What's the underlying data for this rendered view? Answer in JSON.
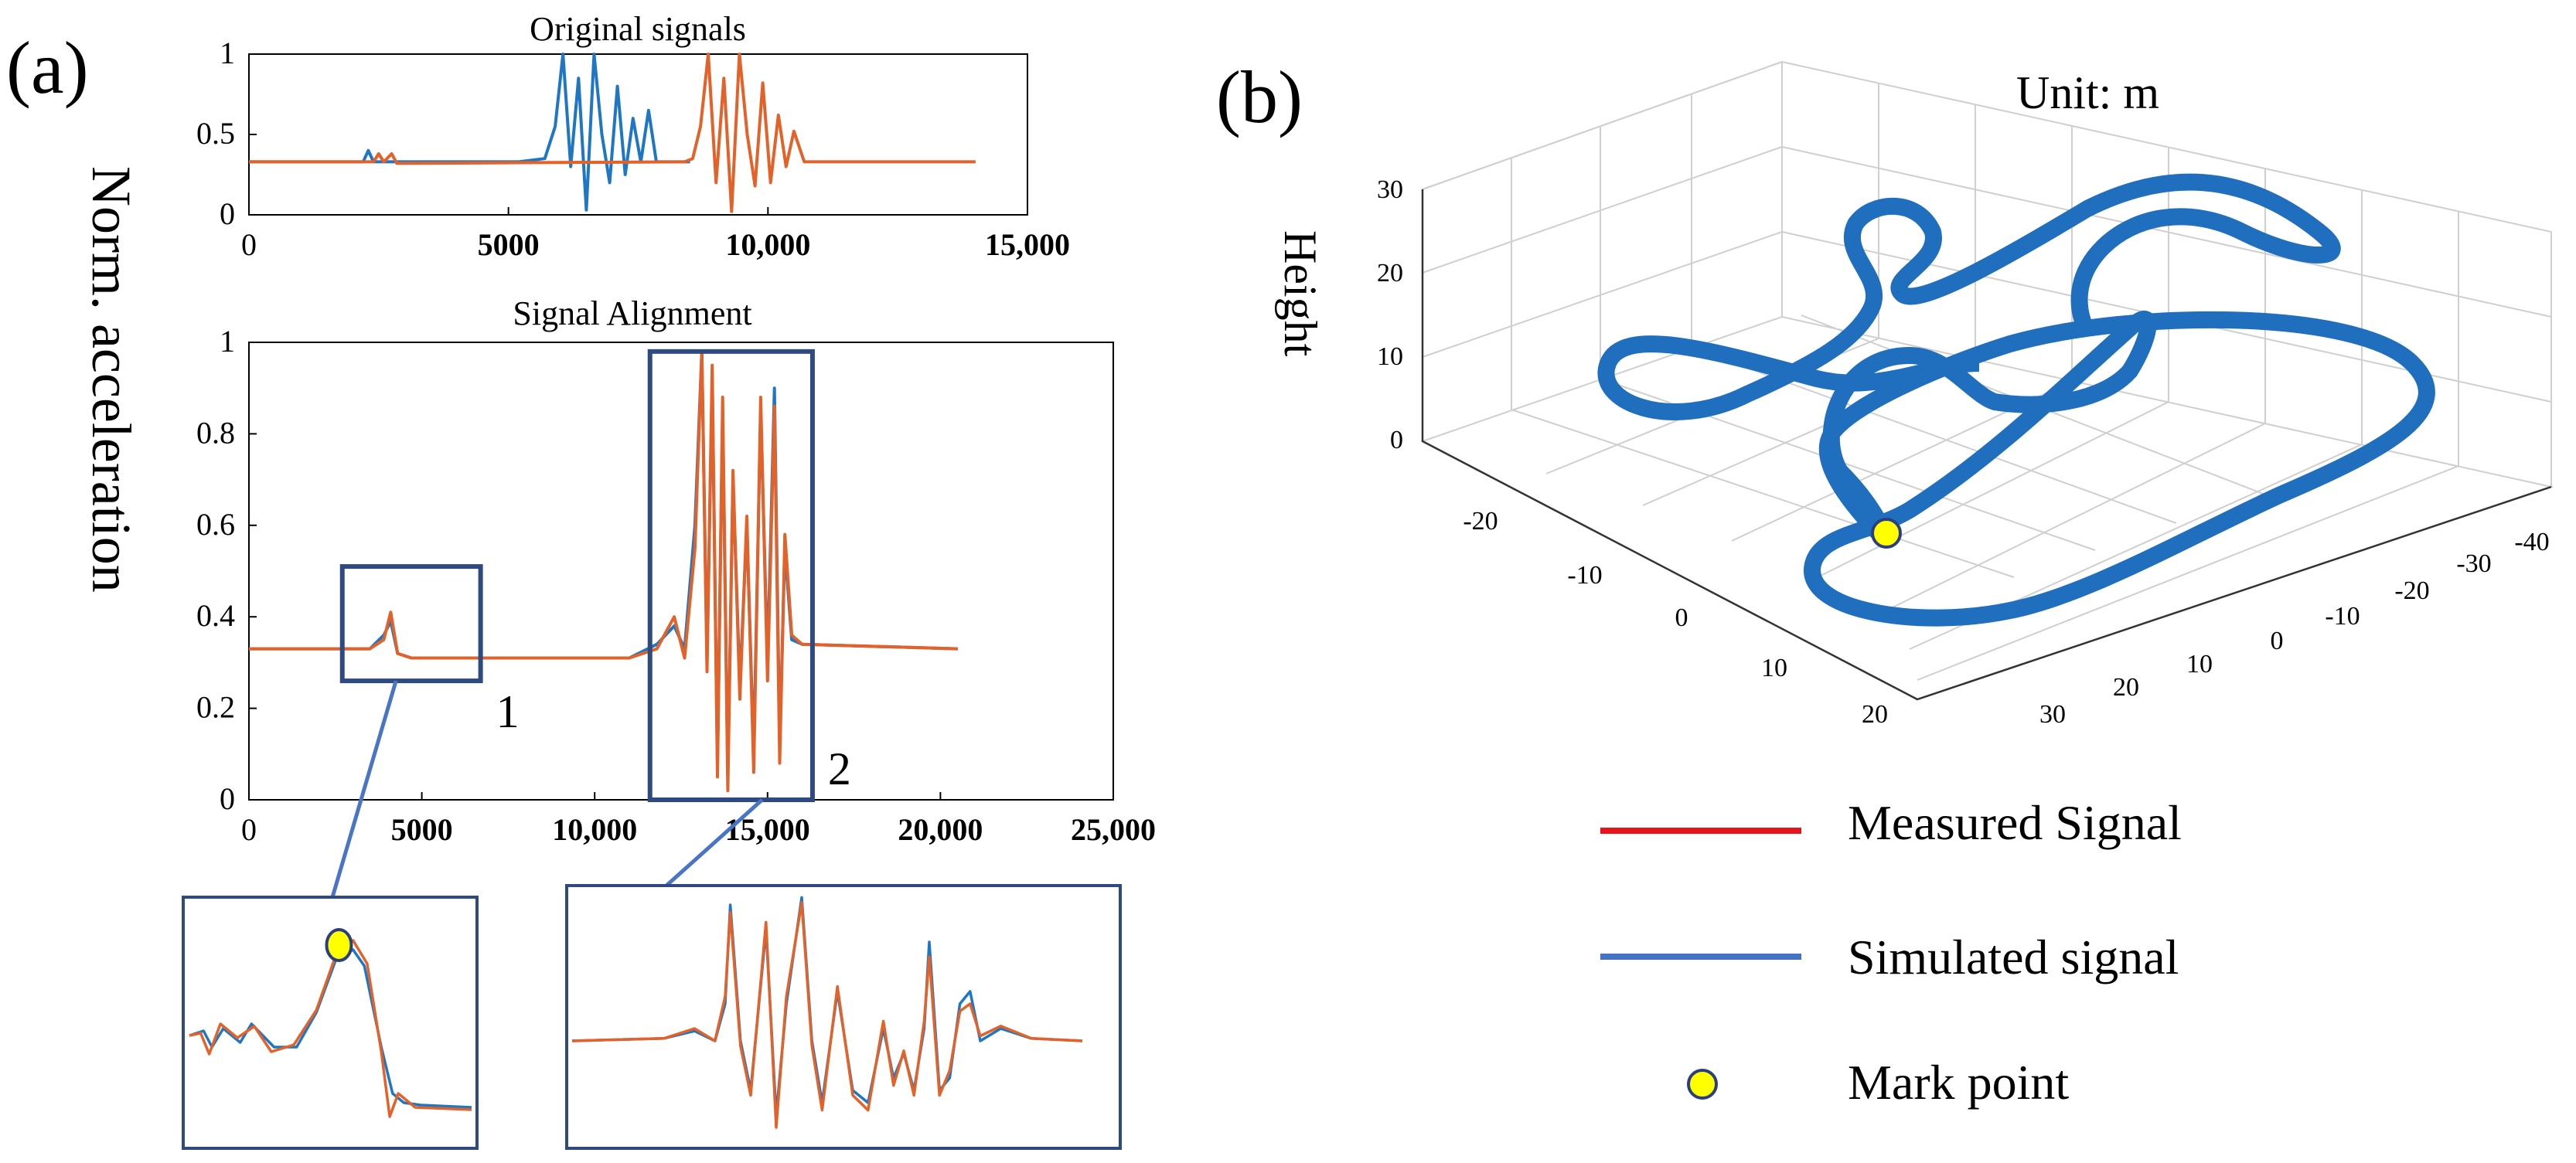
{
  "panel_a": {
    "label": "(a)",
    "ylabel": "Norm. acceleration"
  },
  "panel_b": {
    "label": "(b)",
    "unit_label": "Unit:  m",
    "z_label": "Height",
    "legend": [
      {
        "label": "Measured Signal",
        "color": "#e8141b",
        "kind": "line"
      },
      {
        "label": "Simulated signal",
        "color": "#4472c4",
        "kind": "line"
      },
      {
        "label": " Mark point",
        "color": "#ffff00",
        "kind": "marker"
      }
    ],
    "z_ticks": [
      "30",
      "20",
      "10",
      "0"
    ],
    "x_ticks": [
      "-20",
      "-10",
      "0",
      "10",
      "20"
    ],
    "y_ticks": [
      "-40",
      "-30",
      "-20",
      "-10",
      "0",
      "10",
      "20",
      "30"
    ]
  },
  "colors": {
    "simulated": "#1f77c4",
    "measured": "#e2622a",
    "box": "#2f4a7f",
    "zoom_line": "#4a75c4",
    "track": "#1f6fbe",
    "mark_fill": "#ffff00",
    "mark_stroke": "#2b3f80"
  },
  "chart_data": [
    {
      "type": "line",
      "title": "Original signals",
      "xlim": [
        0,
        15000
      ],
      "ylim": [
        0,
        1
      ],
      "x_ticks": [
        "0",
        "5000",
        "10,000",
        "15,000"
      ],
      "y_ticks": [
        "0",
        "0.5",
        "1"
      ],
      "series": [
        {
          "color": "#1f77c4",
          "points": [
            [
              0,
              0.33
            ],
            [
              2200,
              0.33
            ],
            [
              2300,
              0.4
            ],
            [
              2400,
              0.33
            ],
            [
              5200,
              0.33
            ],
            [
              5700,
              0.35
            ],
            [
              5900,
              0.55
            ],
            [
              6050,
              1.0
            ],
            [
              6200,
              0.3
            ],
            [
              6350,
              0.85
            ],
            [
              6500,
              0.03
            ],
            [
              6650,
              1.0
            ],
            [
              6800,
              0.5
            ],
            [
              6950,
              0.2
            ],
            [
              7100,
              0.8
            ],
            [
              7250,
              0.25
            ],
            [
              7400,
              0.6
            ],
            [
              7550,
              0.33
            ],
            [
              7700,
              0.65
            ],
            [
              7850,
              0.33
            ],
            [
              8500,
              0.33
            ]
          ]
        },
        {
          "color": "#e2622a",
          "points": [
            [
              0,
              0.33
            ],
            [
              2400,
              0.33
            ],
            [
              2500,
              0.38
            ],
            [
              2600,
              0.33
            ],
            [
              2750,
              0.38
            ],
            [
              2850,
              0.32
            ],
            [
              8400,
              0.33
            ],
            [
              8550,
              0.35
            ],
            [
              8700,
              0.55
            ],
            [
              8850,
              1.0
            ],
            [
              9000,
              0.2
            ],
            [
              9150,
              0.85
            ],
            [
              9300,
              0.02
            ],
            [
              9450,
              1.0
            ],
            [
              9600,
              0.5
            ],
            [
              9750,
              0.18
            ],
            [
              9900,
              0.82
            ],
            [
              10050,
              0.2
            ],
            [
              10200,
              0.62
            ],
            [
              10350,
              0.3
            ],
            [
              10500,
              0.52
            ],
            [
              10700,
              0.33
            ],
            [
              14000,
              0.33
            ]
          ]
        }
      ]
    },
    {
      "type": "line",
      "title": "Signal Alignment",
      "xlim": [
        0,
        25000
      ],
      "ylim": [
        0,
        1
      ],
      "x_ticks": [
        "0",
        "5000",
        "10,000",
        "15,000",
        "20,000",
        "25,000"
      ],
      "y_ticks": [
        "0",
        "0.2",
        "0.4",
        "0.6",
        "0.8",
        "1"
      ],
      "annotations": [
        {
          "label": "1",
          "x_range": [
            2700,
            6700
          ],
          "y_range": [
            0.26,
            0.51
          ]
        },
        {
          "label": "2",
          "x_range": [
            11600,
            16300
          ],
          "y_range": [
            0.0,
            0.98
          ]
        }
      ],
      "series": [
        {
          "color": "#1f77c4",
          "points": [
            [
              0,
              0.33
            ],
            [
              3500,
              0.33
            ],
            [
              3900,
              0.36
            ],
            [
              4100,
              0.39
            ],
            [
              4300,
              0.32
            ],
            [
              4700,
              0.31
            ],
            [
              11000,
              0.31
            ],
            [
              11800,
              0.34
            ],
            [
              12300,
              0.38
            ],
            [
              12600,
              0.33
            ],
            [
              12900,
              0.6
            ],
            [
              13100,
              0.98
            ],
            [
              13250,
              0.3
            ],
            [
              13400,
              0.92
            ],
            [
              13550,
              0.08
            ],
            [
              13700,
              0.85
            ],
            [
              13850,
              0.05
            ],
            [
              14000,
              0.7
            ],
            [
              14200,
              0.25
            ],
            [
              14400,
              0.6
            ],
            [
              14600,
              0.1
            ],
            [
              14800,
              0.85
            ],
            [
              15000,
              0.3
            ],
            [
              15200,
              0.9
            ],
            [
              15350,
              0.12
            ],
            [
              15500,
              0.55
            ],
            [
              15700,
              0.35
            ],
            [
              16000,
              0.34
            ],
            [
              20500,
              0.33
            ]
          ]
        },
        {
          "color": "#e2622a",
          "points": [
            [
              0,
              0.33
            ],
            [
              3500,
              0.33
            ],
            [
              3900,
              0.35
            ],
            [
              4100,
              0.41
            ],
            [
              4300,
              0.32
            ],
            [
              4700,
              0.31
            ],
            [
              11000,
              0.31
            ],
            [
              11800,
              0.33
            ],
            [
              12300,
              0.4
            ],
            [
              12600,
              0.31
            ],
            [
              12900,
              0.55
            ],
            [
              13100,
              0.98
            ],
            [
              13250,
              0.28
            ],
            [
              13400,
              0.95
            ],
            [
              13550,
              0.05
            ],
            [
              13700,
              0.88
            ],
            [
              13850,
              0.02
            ],
            [
              14000,
              0.72
            ],
            [
              14200,
              0.22
            ],
            [
              14400,
              0.62
            ],
            [
              14600,
              0.06
            ],
            [
              14800,
              0.88
            ],
            [
              15000,
              0.26
            ],
            [
              15200,
              0.86
            ],
            [
              15350,
              0.08
            ],
            [
              15500,
              0.58
            ],
            [
              15700,
              0.36
            ],
            [
              16000,
              0.34
            ],
            [
              20500,
              0.33
            ]
          ]
        }
      ]
    },
    {
      "type": "line",
      "title": "",
      "series": [
        {
          "color": "#1f77c4",
          "points": [
            [
              0,
              0.45
            ],
            [
              0.05,
              0.47
            ],
            [
              0.08,
              0.4
            ],
            [
              0.12,
              0.48
            ],
            [
              0.18,
              0.42
            ],
            [
              0.22,
              0.5
            ],
            [
              0.3,
              0.4
            ],
            [
              0.38,
              0.4
            ],
            [
              0.45,
              0.55
            ],
            [
              0.52,
              0.78
            ],
            [
              0.58,
              0.82
            ],
            [
              0.62,
              0.75
            ],
            [
              0.68,
              0.4
            ],
            [
              0.72,
              0.2
            ],
            [
              0.76,
              0.16
            ],
            [
              0.82,
              0.15
            ],
            [
              1,
              0.14
            ]
          ]
        },
        {
          "color": "#e2622a",
          "points": [
            [
              0,
              0.45
            ],
            [
              0.04,
              0.46
            ],
            [
              0.07,
              0.37
            ],
            [
              0.11,
              0.5
            ],
            [
              0.17,
              0.44
            ],
            [
              0.23,
              0.49
            ],
            [
              0.29,
              0.38
            ],
            [
              0.37,
              0.41
            ],
            [
              0.45,
              0.56
            ],
            [
              0.52,
              0.8
            ],
            [
              0.58,
              0.86
            ],
            [
              0.63,
              0.76
            ],
            [
              0.68,
              0.38
            ],
            [
              0.71,
              0.1
            ],
            [
              0.74,
              0.2
            ],
            [
              0.8,
              0.14
            ],
            [
              1,
              0.13
            ]
          ]
        }
      ],
      "marker": {
        "x": 0.53,
        "y": 0.84
      }
    },
    {
      "type": "line",
      "title": "",
      "series": [
        {
          "color": "#1f77c4",
          "points": [
            [
              0,
              0.4
            ],
            [
              0.18,
              0.41
            ],
            [
              0.24,
              0.44
            ],
            [
              0.28,
              0.4
            ],
            [
              0.3,
              0.55
            ],
            [
              0.31,
              0.95
            ],
            [
              0.33,
              0.4
            ],
            [
              0.35,
              0.2
            ],
            [
              0.38,
              0.85
            ],
            [
              0.4,
              0.1
            ],
            [
              0.42,
              0.55
            ],
            [
              0.45,
              0.98
            ],
            [
              0.47,
              0.4
            ],
            [
              0.49,
              0.15
            ],
            [
              0.52,
              0.6
            ],
            [
              0.55,
              0.2
            ],
            [
              0.58,
              0.15
            ],
            [
              0.61,
              0.45
            ],
            [
              0.63,
              0.25
            ],
            [
              0.65,
              0.35
            ],
            [
              0.67,
              0.2
            ],
            [
              0.69,
              0.45
            ],
            [
              0.7,
              0.8
            ],
            [
              0.72,
              0.2
            ],
            [
              0.74,
              0.25
            ],
            [
              0.76,
              0.55
            ],
            [
              0.78,
              0.6
            ],
            [
              0.8,
              0.4
            ],
            [
              0.84,
              0.45
            ],
            [
              0.9,
              0.41
            ],
            [
              1,
              0.4
            ]
          ]
        },
        {
          "color": "#e2622a",
          "points": [
            [
              0,
              0.4
            ],
            [
              0.18,
              0.41
            ],
            [
              0.24,
              0.45
            ],
            [
              0.28,
              0.4
            ],
            [
              0.3,
              0.58
            ],
            [
              0.31,
              0.92
            ],
            [
              0.33,
              0.38
            ],
            [
              0.35,
              0.18
            ],
            [
              0.38,
              0.88
            ],
            [
              0.4,
              0.05
            ],
            [
              0.42,
              0.58
            ],
            [
              0.45,
              0.96
            ],
            [
              0.47,
              0.38
            ],
            [
              0.49,
              0.12
            ],
            [
              0.52,
              0.62
            ],
            [
              0.55,
              0.18
            ],
            [
              0.58,
              0.12
            ],
            [
              0.61,
              0.48
            ],
            [
              0.63,
              0.22
            ],
            [
              0.65,
              0.36
            ],
            [
              0.67,
              0.18
            ],
            [
              0.69,
              0.48
            ],
            [
              0.7,
              0.74
            ],
            [
              0.72,
              0.18
            ],
            [
              0.74,
              0.28
            ],
            [
              0.76,
              0.52
            ],
            [
              0.78,
              0.55
            ],
            [
              0.8,
              0.42
            ],
            [
              0.84,
              0.46
            ],
            [
              0.9,
              0.41
            ],
            [
              1,
              0.4
            ]
          ]
        }
      ]
    }
  ]
}
